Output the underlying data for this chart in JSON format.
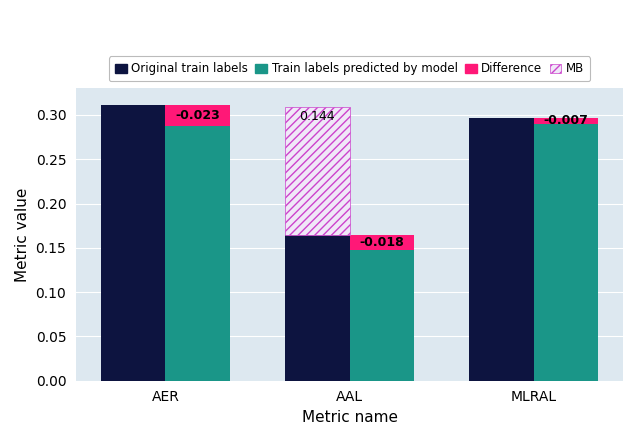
{
  "categories": [
    "AER",
    "AAL",
    "MLRAL"
  ],
  "original_values": [
    0.311,
    0.165,
    0.297
  ],
  "predicted_values": [
    0.288,
    0.147,
    0.29
  ],
  "differences": [
    -0.023,
    -0.018,
    -0.007
  ],
  "mb_value": 0.309,
  "mb_index": 1,
  "mb_diff_label": "0.144",
  "color_original": "#0d1440",
  "color_predicted": "#1a9688",
  "color_difference": "#ff1877",
  "color_mb_hatch": "#cc44cc",
  "color_mb_fill": "#f0e8f8",
  "color_bg": "#dde8f0",
  "bar_width": 0.35,
  "ylim": [
    0,
    0.33
  ],
  "xlabel": "Metric name",
  "ylabel": "Metric value",
  "diff_labels": [
    "-0.023",
    "-0.018",
    "-0.007"
  ],
  "legend_labels": [
    "Original train labels",
    "Train labels predicted by model",
    "Difference",
    "MB"
  ]
}
